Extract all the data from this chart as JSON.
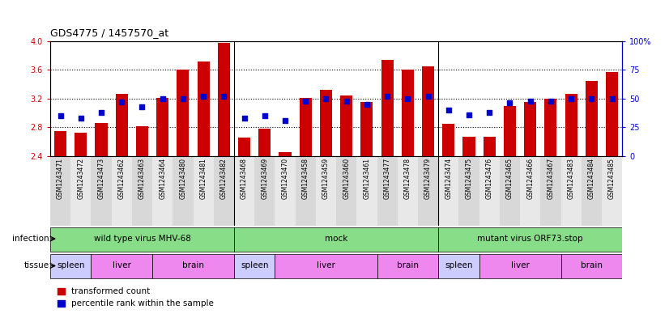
{
  "title": "GDS4775 / 1457570_at",
  "samples": [
    "GSM1243471",
    "GSM1243472",
    "GSM1243473",
    "GSM1243462",
    "GSM1243463",
    "GSM1243464",
    "GSM1243480",
    "GSM1243481",
    "GSM1243482",
    "GSM1243468",
    "GSM1243469",
    "GSM1243470",
    "GSM1243458",
    "GSM1243459",
    "GSM1243460",
    "GSM1243461",
    "GSM1243477",
    "GSM1243478",
    "GSM1243479",
    "GSM1243474",
    "GSM1243475",
    "GSM1243476",
    "GSM1243465",
    "GSM1243466",
    "GSM1243467",
    "GSM1243483",
    "GSM1243484",
    "GSM1243485"
  ],
  "bar_values": [
    2.75,
    2.72,
    2.86,
    3.27,
    2.81,
    3.21,
    3.6,
    3.72,
    3.98,
    2.65,
    2.78,
    2.45,
    3.21,
    3.32,
    3.24,
    3.15,
    3.74,
    3.6,
    3.65,
    2.85,
    2.67,
    2.67,
    3.1,
    3.15,
    3.2,
    3.27,
    3.45,
    3.57
  ],
  "percentile_values": [
    35,
    33,
    38,
    47,
    43,
    50,
    50,
    52,
    52,
    33,
    35,
    31,
    48,
    50,
    48,
    45,
    52,
    50,
    52,
    40,
    36,
    38,
    46,
    48,
    48,
    50,
    50,
    50
  ],
  "bar_color": "#cc0000",
  "dot_color": "#0000cc",
  "ylim_left": [
    2.4,
    4.0
  ],
  "ylim_right": [
    0,
    100
  ],
  "yticks_left": [
    2.4,
    2.8,
    3.2,
    3.6,
    4.0
  ],
  "yticks_right": [
    0,
    25,
    50,
    75,
    100
  ],
  "ytick_labels_right": [
    "0",
    "25",
    "50",
    "75",
    "100%"
  ],
  "infection_groups": [
    {
      "label": "wild type virus MHV-68",
      "start": 0,
      "end": 8,
      "color": "#99ee99"
    },
    {
      "label": "mock",
      "start": 9,
      "end": 18,
      "color": "#99ee99"
    },
    {
      "label": "mutant virus ORF73.stop",
      "start": 19,
      "end": 27,
      "color": "#99ee99"
    }
  ],
  "tissue_groups": [
    {
      "label": "spleen",
      "start": 0,
      "end": 1,
      "color": "#ccccff"
    },
    {
      "label": "liver",
      "start": 2,
      "end": 4,
      "color": "#ee88ee"
    },
    {
      "label": "brain",
      "start": 5,
      "end": 8,
      "color": "#ee88ee"
    },
    {
      "label": "spleen",
      "start": 9,
      "end": 10,
      "color": "#ccccff"
    },
    {
      "label": "liver",
      "start": 11,
      "end": 15,
      "color": "#ee88ee"
    },
    {
      "label": "brain",
      "start": 16,
      "end": 18,
      "color": "#ee88ee"
    },
    {
      "label": "spleen",
      "start": 19,
      "end": 20,
      "color": "#ccccff"
    },
    {
      "label": "liver",
      "start": 21,
      "end": 24,
      "color": "#ee88ee"
    },
    {
      "label": "brain",
      "start": 25,
      "end": 27,
      "color": "#ee88ee"
    }
  ],
  "background_color": "#ffffff",
  "axis_label_color": "#cc0000",
  "right_axis_color": "#0000cc",
  "inf_color": "#88dd88"
}
